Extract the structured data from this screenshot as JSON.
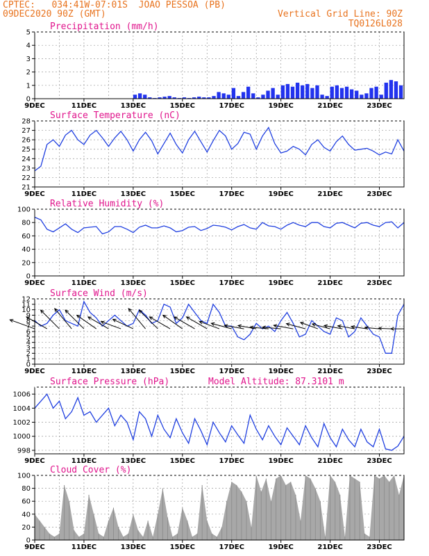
{
  "header": {
    "line1_left": "CPTEC:   034:41W-07:01S  JOAO PESSOA (PB)",
    "line2_left": "09DEC2020 90Z (GMT)",
    "line2_right": "Vertical Grid Line: 90Z",
    "line3_right": "TQ0126L028"
  },
  "colors": {
    "header": "#e8731e",
    "title": "#e0148c",
    "series": "#1f3fe0",
    "bars": "#2233ee",
    "cloud": "#a8a8a8",
    "wind_arrow": "#000000"
  },
  "x_axis": {
    "start_day": 9,
    "end_day": 24,
    "tick_labels": [
      "9DEC",
      "11DEC",
      "13DEC",
      "15DEC",
      "17DEC",
      "19DEC",
      "21DEC",
      "23DEC"
    ],
    "tick_days": [
      9,
      11,
      13,
      15,
      17,
      19,
      21,
      23
    ]
  },
  "chart_data": [
    {
      "type": "bar",
      "title": "Precipitation (mm/h)",
      "ylim": [
        0,
        5
      ],
      "yticks": [
        0,
        1,
        2,
        3,
        4,
        5
      ],
      "series": [
        {
          "x": [
            13.0,
            13.2,
            13.4,
            13.6,
            13.8,
            14.0,
            14.2,
            14.4,
            14.6,
            14.8,
            15.0,
            15.2,
            15.4,
            15.6,
            15.8,
            16.0,
            16.2,
            16.4,
            16.6,
            16.8,
            17.0,
            17.2,
            17.4,
            17.6,
            17.8,
            18.0,
            18.2,
            18.4,
            18.6,
            18.8,
            19.0,
            19.2,
            19.4,
            19.6,
            19.8,
            20.0,
            20.2,
            20.4,
            20.6,
            20.8,
            21.0,
            21.2,
            21.4,
            21.6,
            21.8,
            22.0,
            22.2,
            22.4,
            22.6,
            22.8,
            23.0,
            23.2,
            23.4,
            23.6,
            23.8
          ],
          "values": [
            0.3,
            0.4,
            0.3,
            0.1,
            0.05,
            0.1,
            0.15,
            0.2,
            0.1,
            0.05,
            0.1,
            0.05,
            0.1,
            0.15,
            0.1,
            0.1,
            0.2,
            0.5,
            0.4,
            0.3,
            0.8,
            0.2,
            0.5,
            0.9,
            0.4,
            0.1,
            0.3,
            0.6,
            0.8,
            0.3,
            1.0,
            1.1,
            0.9,
            1.2,
            1.0,
            1.1,
            0.8,
            1.0,
            0.3,
            0.2,
            0.9,
            1.0,
            0.8,
            0.9,
            0.7,
            0.6,
            0.3,
            0.4,
            0.8,
            0.9,
            0.3,
            1.2,
            1.4,
            1.3,
            1.0
          ]
        }
      ]
    },
    {
      "type": "line",
      "title": "Surface Temperature (nC)",
      "ylim": [
        21,
        28
      ],
      "yticks": [
        21,
        22,
        23,
        24,
        25,
        26,
        27,
        28
      ],
      "x": [
        9.0,
        9.25,
        9.5,
        9.75,
        10.0,
        10.25,
        10.5,
        10.75,
        11.0,
        11.25,
        11.5,
        11.75,
        12.0,
        12.25,
        12.5,
        12.75,
        13.0,
        13.25,
        13.5,
        13.75,
        14.0,
        14.25,
        14.5,
        14.75,
        15.0,
        15.25,
        15.5,
        15.75,
        16.0,
        16.25,
        16.5,
        16.75,
        17.0,
        17.25,
        17.5,
        17.75,
        18.0,
        18.25,
        18.5,
        18.75,
        19.0,
        19.25,
        19.5,
        19.75,
        20.0,
        20.25,
        20.5,
        20.75,
        21.0,
        21.25,
        21.5,
        21.75,
        22.0,
        22.25,
        22.5,
        22.75,
        23.0,
        23.25,
        23.5,
        23.75,
        24.0
      ],
      "series": [
        {
          "values": [
            22.7,
            23.2,
            25.5,
            26.0,
            25.3,
            26.5,
            27.0,
            26.0,
            25.5,
            26.5,
            27.0,
            26.2,
            25.3,
            26.2,
            26.9,
            26.0,
            24.8,
            26.0,
            26.8,
            25.9,
            24.5,
            25.6,
            26.7,
            25.5,
            24.6,
            26.0,
            26.9,
            25.8,
            24.7,
            25.9,
            27.0,
            26.4,
            25.0,
            25.6,
            26.8,
            26.6,
            25.0,
            26.4,
            27.3,
            25.6,
            24.6,
            24.8,
            25.3,
            25.0,
            24.4,
            25.5,
            26.0,
            25.2,
            24.8,
            25.8,
            26.4,
            25.5,
            24.9,
            25.0,
            25.1,
            24.8,
            24.4,
            24.7,
            24.5,
            26.0,
            24.8
          ]
        }
      ]
    },
    {
      "type": "line",
      "title": "Relative Humidity (%)",
      "ylim": [
        0,
        100
      ],
      "yticks": [
        0,
        20,
        40,
        60,
        80,
        100
      ],
      "x": [
        9.0,
        9.25,
        9.5,
        9.75,
        10.0,
        10.25,
        10.5,
        10.75,
        11.0,
        11.25,
        11.5,
        11.75,
        12.0,
        12.25,
        12.5,
        12.75,
        13.0,
        13.25,
        13.5,
        13.75,
        14.0,
        14.25,
        14.5,
        14.75,
        15.0,
        15.25,
        15.5,
        15.75,
        16.0,
        16.25,
        16.5,
        16.75,
        17.0,
        17.25,
        17.5,
        17.75,
        18.0,
        18.25,
        18.5,
        18.75,
        19.0,
        19.25,
        19.5,
        19.75,
        20.0,
        20.25,
        20.5,
        20.75,
        21.0,
        21.25,
        21.5,
        21.75,
        22.0,
        22.25,
        22.5,
        22.75,
        23.0,
        23.25,
        23.5,
        23.75,
        24.0
      ],
      "series": [
        {
          "values": [
            88,
            84,
            70,
            66,
            72,
            78,
            70,
            65,
            72,
            73,
            74,
            63,
            66,
            74,
            74,
            70,
            65,
            73,
            76,
            72,
            72,
            75,
            72,
            66,
            68,
            73,
            74,
            68,
            71,
            76,
            75,
            73,
            69,
            74,
            77,
            72,
            70,
            80,
            75,
            74,
            70,
            76,
            80,
            76,
            74,
            80,
            80,
            74,
            72,
            79,
            80,
            76,
            72,
            79,
            80,
            76,
            74,
            80,
            81,
            72,
            80
          ]
        }
      ]
    },
    {
      "type": "line",
      "title": "Surface Wind (m/s)",
      "ylim": [
        0,
        12
      ],
      "yticks": [
        0,
        1,
        2,
        3,
        4,
        5,
        6,
        7,
        8,
        9,
        10,
        11,
        12
      ],
      "x": [
        9.0,
        9.25,
        9.5,
        9.75,
        10.0,
        10.25,
        10.5,
        10.75,
        11.0,
        11.25,
        11.5,
        11.75,
        12.0,
        12.25,
        12.5,
        12.75,
        13.0,
        13.25,
        13.5,
        13.75,
        14.0,
        14.25,
        14.5,
        14.75,
        15.0,
        15.25,
        15.5,
        15.75,
        16.0,
        16.25,
        16.5,
        16.75,
        17.0,
        17.25,
        17.5,
        17.75,
        18.0,
        18.25,
        18.5,
        18.75,
        19.0,
        19.25,
        19.5,
        19.75,
        20.0,
        20.25,
        20.5,
        20.75,
        21.0,
        21.25,
        21.5,
        21.75,
        22.0,
        22.25,
        22.5,
        22.75,
        23.0,
        23.25,
        23.5,
        23.75,
        24.0
      ],
      "series": [
        {
          "values": [
            8,
            7,
            7.5,
            9,
            10,
            8,
            7.5,
            7,
            11.5,
            9.5,
            8.5,
            7,
            8,
            9,
            8,
            7,
            7.5,
            10,
            9,
            7.5,
            8,
            11,
            10.5,
            7.5,
            8.5,
            11,
            9.5,
            8,
            7.5,
            11,
            9.5,
            7,
            7,
            5,
            4.5,
            5.5,
            7.5,
            6.5,
            7,
            6,
            8,
            9.5,
            7.5,
            5,
            5.5,
            8,
            7,
            6,
            5.5,
            8.5,
            8,
            5,
            6,
            8.5,
            7,
            5.5,
            5,
            2,
            2,
            9,
            11
          ]
        }
      ],
      "arrows": {
        "x": [
          9.0,
          9.5,
          10.0,
          10.5,
          11.0,
          11.5,
          12.0,
          12.5,
          13.0,
          13.5,
          14.0,
          14.5,
          15.0,
          15.5,
          16.0,
          16.5,
          17.0,
          17.5,
          18.0,
          18.5,
          19.0,
          19.5,
          20.0,
          20.5,
          21.0,
          21.5,
          22.0,
          22.5,
          23.0,
          23.5,
          24.0
        ],
        "dir_deg": [
          160,
          150,
          135,
          130,
          135,
          145,
          150,
          160,
          155,
          130,
          135,
          150,
          145,
          150,
          150,
          160,
          165,
          170,
          170,
          175,
          175,
          170,
          165,
          160,
          165,
          170,
          170,
          172,
          175,
          178,
          180
        ],
        "len": [
          1.0,
          0.9,
          1.0,
          1.0,
          1.0,
          0.9,
          0.9,
          0.8,
          0.85,
          1.0,
          1.0,
          0.9,
          0.9,
          0.9,
          0.9,
          0.8,
          0.8,
          0.75,
          0.7,
          0.7,
          0.7,
          0.75,
          0.75,
          0.7,
          0.7,
          0.7,
          0.65,
          0.6,
          0.55,
          0.5,
          0.5
        ]
      }
    },
    {
      "type": "line",
      "title": "Surface Pressure (hPa)",
      "annotation": "Model Altitude: 87.3101 m",
      "ylim": [
        997.5,
        1007
      ],
      "yticks": [
        998,
        1000,
        1002,
        1004,
        1006
      ],
      "x": [
        9.0,
        9.25,
        9.5,
        9.75,
        10.0,
        10.25,
        10.5,
        10.75,
        11.0,
        11.25,
        11.5,
        11.75,
        12.0,
        12.25,
        12.5,
        12.75,
        13.0,
        13.25,
        13.5,
        13.75,
        14.0,
        14.25,
        14.5,
        14.75,
        15.0,
        15.25,
        15.5,
        15.75,
        16.0,
        16.25,
        16.5,
        16.75,
        17.0,
        17.25,
        17.5,
        17.75,
        18.0,
        18.25,
        18.5,
        18.75,
        19.0,
        19.25,
        19.5,
        19.75,
        20.0,
        20.25,
        20.5,
        20.75,
        21.0,
        21.25,
        21.5,
        21.75,
        22.0,
        22.25,
        22.5,
        22.75,
        23.0,
        23.25,
        23.5,
        23.75,
        24.0
      ],
      "series": [
        {
          "values": [
            1004,
            1005,
            1006,
            1004,
            1005,
            1002.5,
            1003.5,
            1005.5,
            1003,
            1003.5,
            1002,
            1003,
            1004,
            1001.5,
            1003,
            1002,
            999.5,
            1003.5,
            1002.5,
            1000,
            1003,
            1001,
            999.8,
            1002.5,
            1000.5,
            999,
            1002.5,
            1000.8,
            998.8,
            1002,
            1000.5,
            999.2,
            1001.5,
            1000.2,
            999,
            1003,
            1001,
            999.5,
            1001.5,
            1000,
            998.8,
            1001.2,
            1000,
            998.8,
            1001.5,
            999.8,
            998.5,
            1001.8,
            999.8,
            998.5,
            1001,
            999.5,
            998.5,
            1001,
            999.2,
            998.5,
            1001,
            998.2,
            998,
            998.6,
            1000
          ]
        }
      ]
    },
    {
      "type": "area",
      "title": "Cloud Cover (%)",
      "ylim": [
        0,
        100
      ],
      "yticks": [
        0,
        20,
        40,
        60,
        80,
        100
      ],
      "x": [
        9.0,
        9.2,
        9.4,
        9.6,
        9.8,
        10.0,
        10.2,
        10.4,
        10.6,
        10.8,
        11.0,
        11.2,
        11.4,
        11.6,
        11.8,
        12.0,
        12.2,
        12.4,
        12.6,
        12.8,
        13.0,
        13.2,
        13.4,
        13.6,
        13.8,
        14.0,
        14.2,
        14.4,
        14.6,
        14.8,
        15.0,
        15.2,
        15.4,
        15.6,
        15.8,
        16.0,
        16.2,
        16.4,
        16.6,
        16.8,
        17.0,
        17.2,
        17.4,
        17.6,
        17.8,
        18.0,
        18.2,
        18.4,
        18.6,
        18.8,
        19.0,
        19.2,
        19.4,
        19.6,
        19.8,
        20.0,
        20.2,
        20.4,
        20.6,
        20.8,
        21.0,
        21.2,
        21.4,
        21.6,
        21.8,
        22.0,
        22.2,
        22.4,
        22.6,
        22.8,
        23.0,
        23.2,
        23.4,
        23.6,
        23.8,
        24.0
      ],
      "series": [
        {
          "values": [
            40,
            30,
            20,
            10,
            5,
            10,
            85,
            60,
            15,
            5,
            10,
            70,
            40,
            10,
            5,
            30,
            50,
            20,
            5,
            10,
            40,
            15,
            5,
            30,
            5,
            40,
            80,
            35,
            5,
            10,
            50,
            30,
            5,
            10,
            85,
            30,
            10,
            5,
            20,
            60,
            90,
            85,
            75,
            60,
            20,
            100,
            75,
            95,
            60,
            95,
            100,
            85,
            90,
            70,
            30,
            100,
            95,
            80,
            60,
            5,
            100,
            90,
            70,
            5,
            100,
            95,
            90,
            10,
            5,
            100,
            95,
            100,
            90,
            100,
            70,
            100
          ]
        }
      ]
    }
  ]
}
